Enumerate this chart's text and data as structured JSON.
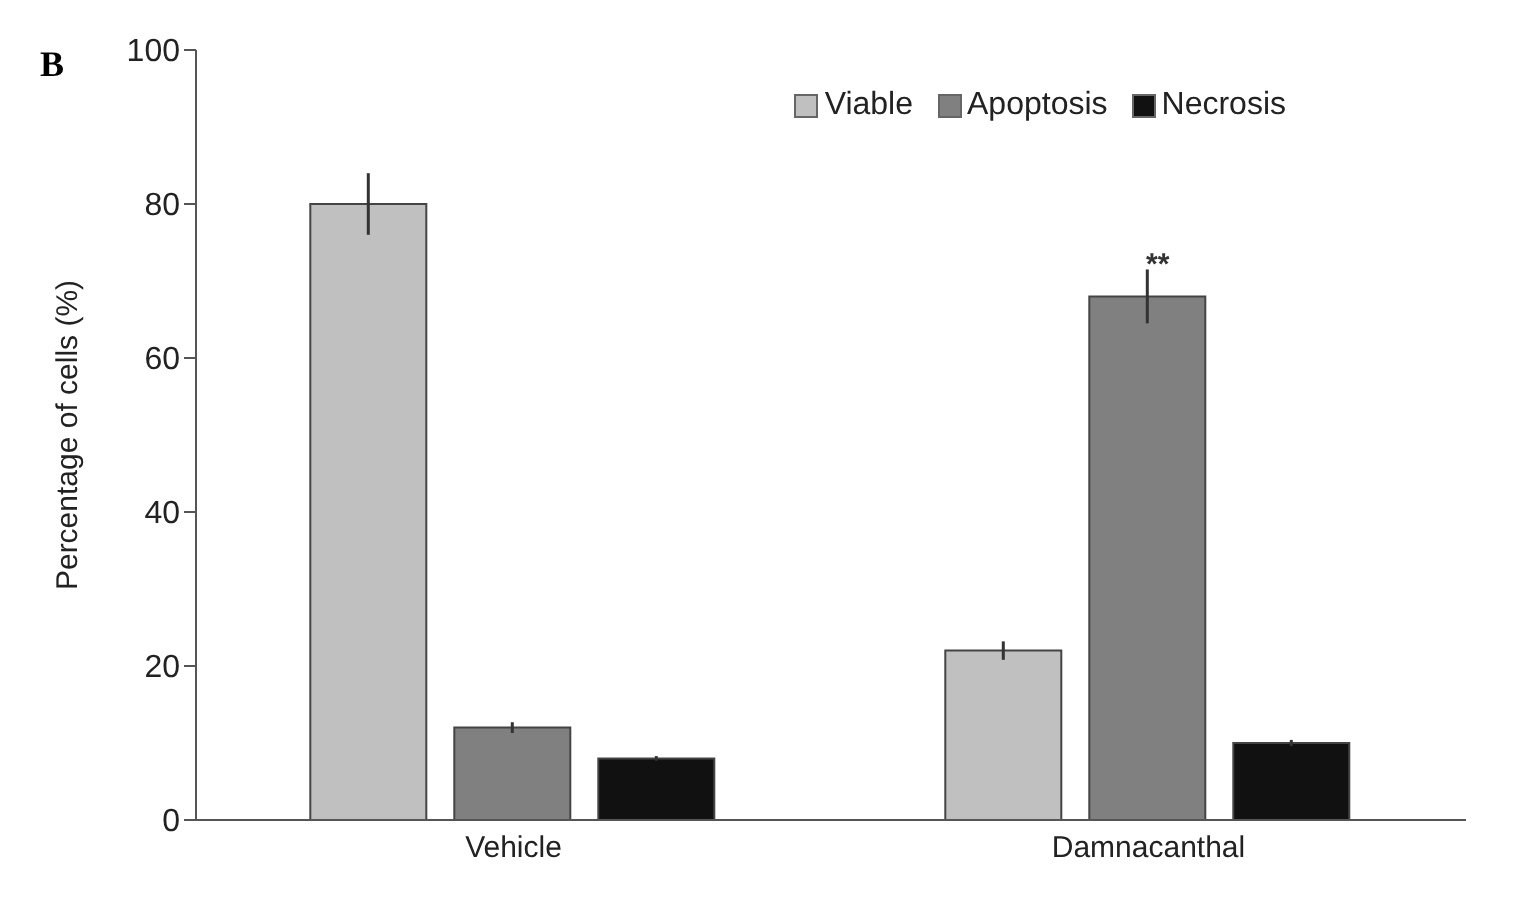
{
  "chart_data": {
    "type": "bar",
    "ylabel": "Percentage of cells (%)",
    "categories": [
      "Vehicle",
      "Damnacanthal"
    ],
    "series": [
      {
        "name": "Viable",
        "color": "#c0c0c0",
        "values": [
          80,
          22
        ],
        "errors": [
          4,
          1.2
        ]
      },
      {
        "name": "Apoptosis",
        "color": "#808080",
        "values": [
          12,
          68
        ],
        "errors": [
          0.7,
          3.5
        ]
      },
      {
        "name": "Necrosis",
        "color": "#111111",
        "values": [
          8,
          10
        ],
        "errors": [
          0.3,
          0.4
        ]
      }
    ],
    "ylim": [
      0,
      100
    ],
    "yticks": [
      0,
      20,
      40,
      60,
      80,
      100
    ],
    "grid": false,
    "legend": "top right",
    "annotations": [
      "B",
      "**"
    ]
  }
}
